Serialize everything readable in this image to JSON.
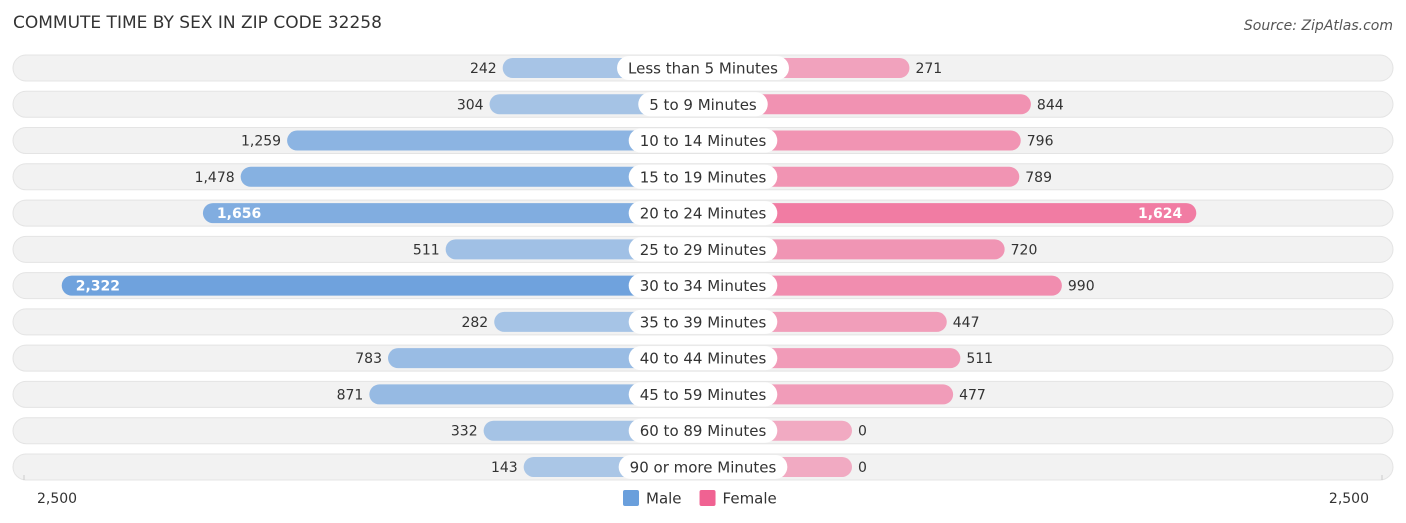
{
  "chart_data": {
    "type": "butterfly",
    "title": "COMMUTE TIME BY SEX IN ZIP CODE 32258",
    "source": "Source: ZipAtlas.com",
    "categories": [
      "Less than 5 Minutes",
      "5 to 9 Minutes",
      "10 to 14 Minutes",
      "15 to 19 Minutes",
      "20 to 24 Minutes",
      "25 to 29 Minutes",
      "30 to 34 Minutes",
      "35 to 39 Minutes",
      "40 to 44 Minutes",
      "45 to 59 Minutes",
      "60 to 89 Minutes",
      "90 or more Minutes"
    ],
    "series": [
      {
        "name": "Male",
        "color": "#6a9fdc",
        "values": [
          242,
          304,
          1259,
          1478,
          1656,
          511,
          2322,
          282,
          783,
          871,
          332,
          143
        ],
        "value_labels": [
          "242",
          "304",
          "1,259",
          "1,478",
          "1,656",
          "511",
          "2,322",
          "282",
          "783",
          "871",
          "332",
          "143"
        ]
      },
      {
        "name": "Female",
        "color": "#f06292",
        "values": [
          271,
          844,
          796,
          789,
          1624,
          720,
          990,
          447,
          511,
          477,
          0,
          0
        ],
        "value_labels": [
          "271",
          "844",
          "796",
          "789",
          "1,624",
          "720",
          "990",
          "447",
          "511",
          "477",
          "0",
          "0"
        ]
      }
    ],
    "xlim": [
      0,
      2500
    ],
    "xticks": [
      {
        "value": 2500,
        "label": "2,500"
      },
      {
        "value": 2500,
        "label": "2,500"
      }
    ]
  }
}
